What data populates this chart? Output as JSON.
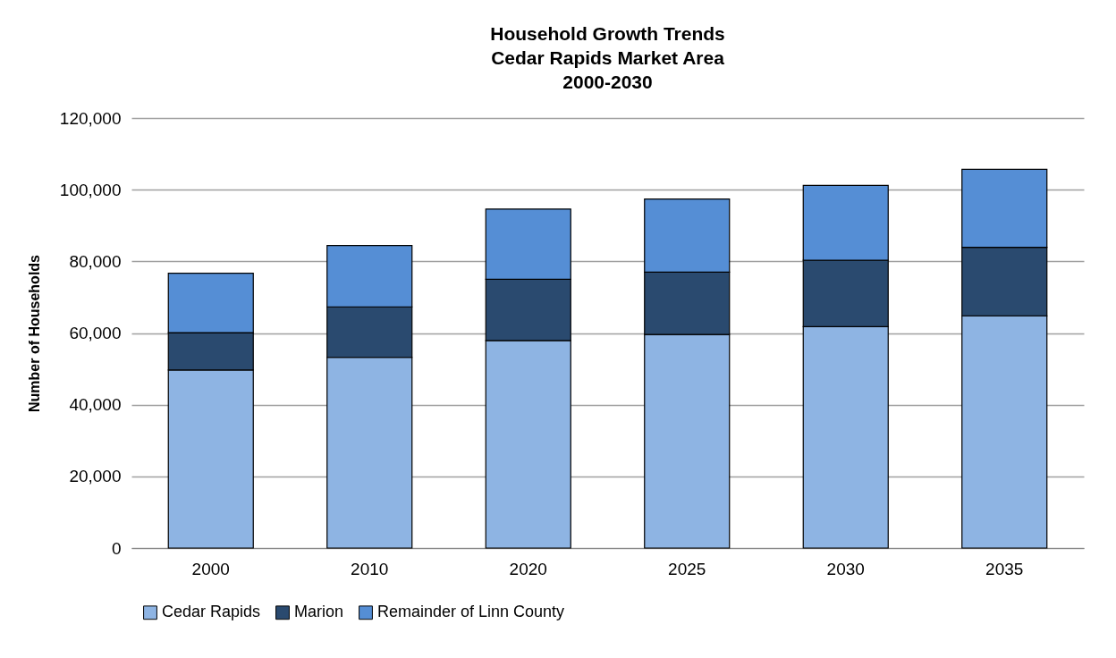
{
  "chart_data": {
    "type": "bar",
    "title": "Household Growth Trends\nCedar Rapids Market Area\n2000-2030",
    "ylabel": "Number of Households",
    "categories": [
      "2000",
      "2010",
      "2020",
      "2025",
      "2030",
      "2035"
    ],
    "stacked": true,
    "series": [
      {
        "name": "Cedar Rapids",
        "color": "#8eb4e3",
        "values": [
          49700,
          53200,
          57900,
          59600,
          61800,
          64800
        ]
      },
      {
        "name": "Marion",
        "color": "#2a4a6f",
        "values": [
          10400,
          14100,
          17100,
          17400,
          18500,
          19100
        ]
      },
      {
        "name": "Remainder of Linn County",
        "color": "#558ed5",
        "values": [
          16600,
          17100,
          19600,
          20400,
          20900,
          21800
        ]
      }
    ],
    "ylim": [
      0,
      120000
    ],
    "yticks": [
      0,
      {
        "value": 20000,
        "label": "20,000"
      },
      {
        "value": 40000,
        "label": "40,000"
      },
      {
        "value": 60000,
        "label": "60,000"
      },
      {
        "value": 80000,
        "label": "80,000"
      },
      {
        "value": 100000,
        "label": "100,000"
      },
      {
        "value": 120000,
        "label": "120,000"
      }
    ],
    "grid": "y",
    "legend": "bottom"
  }
}
